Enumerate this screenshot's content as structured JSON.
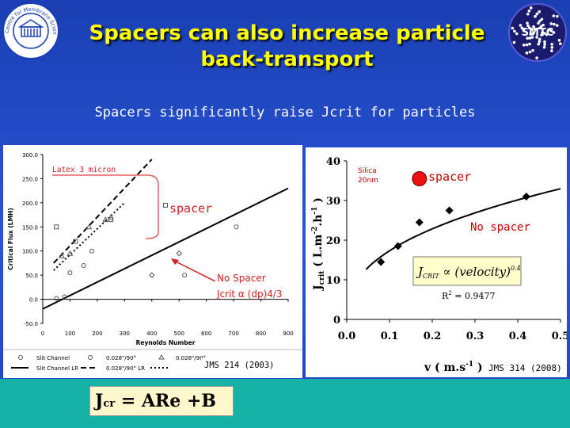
{
  "slide": {
    "title_line1": "Spacers can also increase particle",
    "title_line2": "back-transport",
    "subtitle": "Spacers significantly raise Jcrit for particles",
    "logo_right_text": "SMTC",
    "logo_left_text": "Centre for Membrane Science and Technology",
    "formula": "Jcr = ARe +B"
  },
  "chart_data": [
    {
      "type": "scatter",
      "xlabel": "Reynolds Number",
      "ylabel": "Critical Flux (LMH)",
      "xlim": [
        0,
        900
      ],
      "ylim": [
        -50,
        300
      ],
      "x_ticks": [
        "0",
        "100",
        "200",
        "300",
        "400",
        "500",
        "600",
        "700",
        "800",
        "900"
      ],
      "y_ticks": [
        "-50.0",
        "0.0",
        "50.0",
        "100.0",
        "150.0",
        "200.0",
        "250.0",
        "300.0"
      ],
      "grid": false,
      "legend_position": "bottom",
      "legend": [
        "Slit Channel",
        "0.028\"/90°",
        "0.028\"/90°",
        "Slit Channel LR",
        "0.028\"/90° LR"
      ],
      "annotations": [
        "Latex 3 micron",
        "spacer",
        "No Spacer",
        "Jcrit α (dp)4/3",
        "JMS 214 (2003)"
      ],
      "series": [
        {
          "name": "Slit Channel",
          "marker": "circle",
          "x": [
            50,
            80,
            100,
            150,
            180,
            520,
            710
          ],
          "y": [
            2,
            5,
            55,
            70,
            100,
            50,
            150
          ]
        },
        {
          "name": "0.028\"/90°",
          "marker": "square",
          "x": [
            50,
            120,
            250,
            450
          ],
          "y": [
            150,
            120,
            165,
            195
          ]
        },
        {
          "name": "0.028\"/90°",
          "marker": "triangle",
          "x": [
            70,
            100,
            170,
            230,
            250
          ],
          "y": [
            90,
            95,
            150,
            165,
            170
          ]
        },
        {
          "name": "0.028\"/90°",
          "marker": "diamond",
          "x": [
            400,
            500
          ],
          "y": [
            50,
            95
          ]
        }
      ],
      "lines": [
        {
          "name": "Slit Channel LR",
          "style": "solid",
          "x": [
            0,
            900
          ],
          "y": [
            -20,
            230
          ]
        },
        {
          "name": "0.028\"/90° LR",
          "style": "dashed",
          "x": [
            40,
            400
          ],
          "y": [
            75,
            290
          ]
        },
        {
          "name": "0.028\"/90° LR",
          "style": "dotted",
          "x": [
            40,
            300
          ],
          "y": [
            60,
            200
          ]
        }
      ]
    },
    {
      "type": "scatter",
      "xlabel": "v ( m.s-1 )",
      "ylabel": "Jcrit ( L.m-2.h-1 )",
      "xlim": [
        0,
        0.5
      ],
      "ylim": [
        0,
        40
      ],
      "x_ticks": [
        "0.0",
        "0.1",
        "0.2",
        "0.3",
        "0.4",
        "0.5"
      ],
      "y_ticks": [
        "0",
        "10",
        "20",
        "30",
        "40"
      ],
      "grid": false,
      "annotations": [
        "Silica 20nm",
        "spacer",
        "No spacer",
        "JCRIT ∝ (velocity)0.4",
        "R2 = 0.9477",
        "JMS 314 (2008)"
      ],
      "series": [
        {
          "name": "No spacer",
          "marker": "diamond",
          "x": [
            0.08,
            0.12,
            0.17,
            0.24,
            0.42
          ],
          "y": [
            14.5,
            18.5,
            24.5,
            27.5,
            31
          ]
        },
        {
          "name": "spacer",
          "marker": "circle-red",
          "x": [
            0.17
          ],
          "y": [
            35.5
          ]
        }
      ],
      "fit": {
        "formula": "JCRIT ∝ (velocity)0.4",
        "r2": "R2 = 0.9477",
        "exponent": 0.4,
        "coefficient": 43.5
      }
    }
  ]
}
